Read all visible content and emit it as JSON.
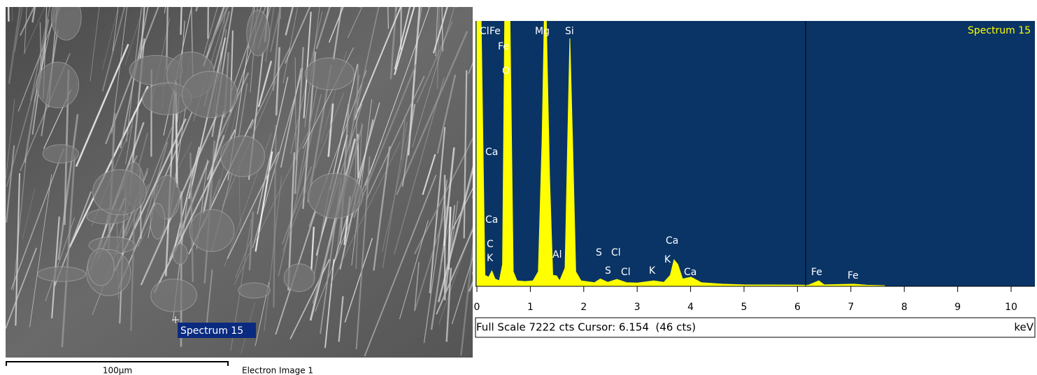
{
  "image_panel": {
    "spectrum_marker": "Spectrum 15",
    "scale_bar": "100µm",
    "caption": "Electron Image 1"
  },
  "chart_data": {
    "type": "area",
    "title": "Spectrum 15",
    "x_label": "keV",
    "status": "Full Scale 7222 cts Cursor: 6.154  (46 cts)",
    "x": [
      0,
      0.08,
      0.15,
      0.22,
      0.28,
      0.34,
      0.42,
      0.48,
      0.52,
      0.56,
      0.62,
      0.68,
      0.75,
      0.9,
      1.05,
      1.15,
      1.22,
      1.26,
      1.3,
      1.36,
      1.42,
      1.49,
      1.55,
      1.65,
      1.7,
      1.74,
      1.79,
      1.85,
      1.95,
      2.2,
      2.31,
      2.45,
      2.62,
      2.8,
      3.0,
      3.31,
      3.5,
      3.62,
      3.69,
      3.76,
      3.85,
      4.01,
      4.2,
      4.6,
      5.0,
      6.0,
      6.2,
      6.4,
      6.5,
      7.06,
      7.3,
      7.63
    ],
    "y": [
      7222,
      7222,
      300,
      250,
      420,
      200,
      150,
      600,
      7222,
      7222,
      7222,
      400,
      150,
      130,
      150,
      400,
      4000,
      7222,
      7222,
      3000,
      300,
      285,
      150,
      500,
      4000,
      6750,
      4000,
      400,
      150,
      100,
      200,
      110,
      190,
      100,
      90,
      150,
      110,
      300,
      720,
      600,
      200,
      250,
      100,
      60,
      40,
      35,
      30,
      150,
      40,
      60,
      30,
      20
    ],
    "color": "#ffff00",
    "xlim": [
      0,
      10.44
    ],
    "xticks": [
      0,
      1,
      2,
      3,
      4,
      5,
      6,
      7,
      8,
      9,
      10
    ],
    "ylim": [
      0,
      7222
    ],
    "cursor": 6.154,
    "peak_labels": [
      "Cl",
      "Fe",
      "Fe",
      "O",
      "Mg",
      "Si",
      "Ca",
      "Ca",
      "C",
      "K",
      "Al",
      "S",
      "Cl",
      "S",
      "Cl",
      "K",
      "Ca",
      "K",
      "Ca",
      "Fe",
      "Fe"
    ]
  }
}
